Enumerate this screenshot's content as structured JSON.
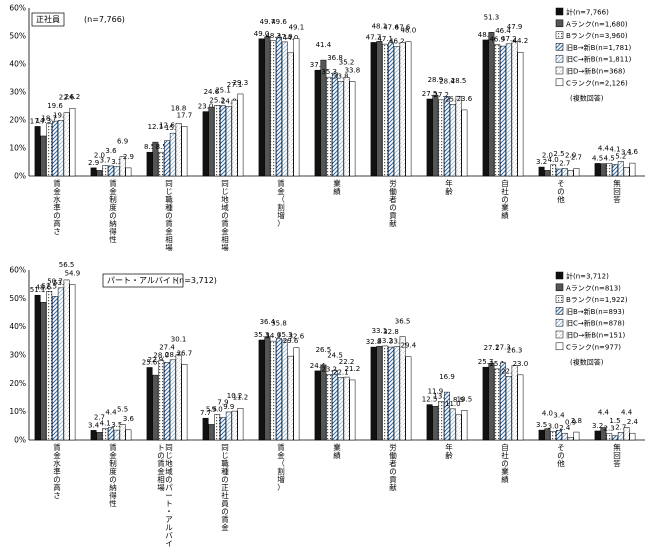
{
  "chart_data": [
    {
      "type": "bar",
      "title": "正社員",
      "n_label": "(n=7,766)",
      "ylim": [
        0,
        60
      ],
      "yticks": [
        "0%",
        "10%",
        "20%",
        "30%",
        "40%",
        "50%",
        "60%"
      ],
      "note": "(複数回答)",
      "categories": [
        "賃金水準の高さ",
        "賃金制度の納得性",
        "同じ職種の賃金相場",
        "同じ地域の賃金相場",
        "賃金（割増）",
        "業績",
        "労働者の貢献",
        "年齢",
        "自社の業績",
        "その他",
        "無回答"
      ],
      "series": [
        {
          "name": "計(n=7,766)",
          "values": [
            17.7,
            2.9,
            8.5,
            23.0,
            49.0,
            37.8,
            47.7,
            27.5,
            48.6,
            3.2,
            4.5
          ]
        },
        {
          "name": "Aランク(n=1,680)",
          "values": [
            14.3,
            2.0,
            12.1,
            24.6,
            49.7,
            41.4,
            48.1,
            28.9,
            51.3,
            2.0,
            4.4
          ]
        },
        {
          "name": "Bランク(n=3,960)",
          "values": [
            18.7,
            3.7,
            8.5,
            25.2,
            48.3,
            35.3,
            47.1,
            27.2,
            46.9,
            4.0,
            4.5
          ]
        },
        {
          "name": "旧B→新B(n=1,781)",
          "values": [
            19.6,
            3.6,
            12.6,
            25.1,
            49.6,
            36.8,
            47.6,
            28.4,
            46.4,
            2.5,
            4.1
          ]
        },
        {
          "name": "旧C→新B(n=1,811)",
          "values": [
            19.9,
            3.3,
            15.3,
            24.8,
            47.9,
            33.8,
            46.2,
            25.6,
            47.2,
            2.7,
            5.2
          ]
        },
        {
          "name": "旧D→新B(n=368)",
          "values": [
            22.6,
            6.9,
            18.8,
            27.1,
            44.0,
            35.2,
            47.6,
            28.5,
            47.9,
            2.0,
            3.1
          ]
        },
        {
          "name": "Cランク(n=2,126)",
          "values": [
            24.2,
            2.9,
            17.7,
            29.3,
            49.1,
            33.8,
            48.0,
            23.6,
            44.2,
            2.7,
            4.6
          ]
        }
      ]
    },
    {
      "type": "bar",
      "title": "パート・アルバイト",
      "n_label": "(n=3,712)",
      "ylim": [
        0,
        60
      ],
      "yticks": [
        "0%",
        "10%",
        "20%",
        "30%",
        "40%",
        "50%",
        "60%"
      ],
      "note": "(複数回答)",
      "categories": [
        "賃金水準の高さ",
        "賃金制度の納得性",
        "同じ地域のパート・アルバイトの賃金相場",
        "同じ職種の正社員の賃金",
        "賃金（割増）",
        "業績",
        "労働者の貢献",
        "年齢",
        "自社の業績",
        "その他",
        "無回答"
      ],
      "series": [
        {
          "name": "計(n=3,712)",
          "values": [
            51.1,
            3.4,
            25.6,
            7.7,
            35.3,
            24.4,
            32.8,
            12.5,
            25.7,
            3.5,
            3.2
          ]
        },
        {
          "name": "Aランク(n=813)",
          "values": [
            48.6,
            2.7,
            22.9,
            5.5,
            36.4,
            26.5,
            33.1,
            11.9,
            27.1,
            4.0,
            4.4
          ]
        },
        {
          "name": "Bランク(n=1,922)",
          "values": [
            52.5,
            4.1,
            28.0,
            9.0,
            34.9,
            23.2,
            33.2,
            13.6,
            25.1,
            3.0,
            2.3
          ]
        },
        {
          "name": "旧B→新B(n=893)",
          "values": [
            50.7,
            4.4,
            27.4,
            7.9,
            35.8,
            24.5,
            32.8,
            16.9,
            27.3,
            3.4,
            1.5
          ]
        },
        {
          "name": "旧C→新B(n=878)",
          "values": [
            53.7,
            3.5,
            28.3,
            9.9,
            35.3,
            22.1,
            33.0,
            11.0,
            22.5,
            2.4,
            2.7
          ]
        },
        {
          "name": "旧D→新B(n=151)",
          "values": [
            56.5,
            5.5,
            30.1,
            10.2,
            29.6,
            22.2,
            36.5,
            8.9,
            26.3,
            0.9,
            4.4
          ]
        },
        {
          "name": "Cランク(n=977)",
          "values": [
            54.9,
            3.6,
            26.7,
            11.2,
            32.6,
            21.2,
            29.4,
            10.5,
            23.0,
            2.8,
            2.4
          ]
        }
      ]
    }
  ]
}
